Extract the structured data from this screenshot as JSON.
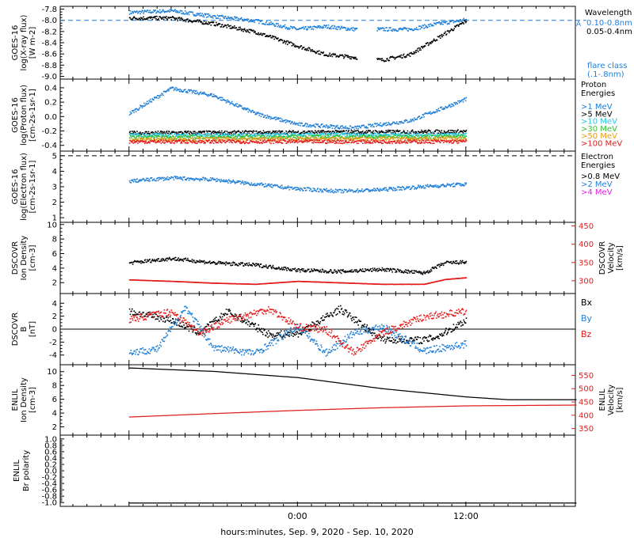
{
  "colors": {
    "black": "#000000",
    "blue": "#1f7fd8",
    "cyan": "#29c6e6",
    "green": "#35c035",
    "orange": "#e39a1a",
    "red": "#e21b1b",
    "magenta": "#e020e0"
  },
  "xaxis": {
    "label": "hours:minutes, Sep.  9, 2020 - Sep. 10, 2020",
    "ticks": [
      "0:00",
      "12:00"
    ],
    "tick_hours": [
      0,
      12
    ]
  },
  "chart_data": [
    {
      "id": "xray",
      "type": "scatter",
      "ylabel": [
        "GOES-16",
        "log(X-ray flux)",
        "[W m-2]"
      ],
      "yticks": [
        "-7.8",
        "-8.0",
        "-8.2",
        "-8.4",
        "-8.6",
        "-8.8",
        "-9.0"
      ],
      "ylim": [
        -9.05,
        -7.75
      ],
      "legend_title": "Wavelength",
      "legend": [
        "0.10-0.8nm",
        "0.05-0.4nm"
      ],
      "annotation": [
        "flare class",
        "(.1-.8nm)"
      ],
      "annotation_marker": "A",
      "reference_line": -8.0,
      "series": [
        {
          "name": "0.10-0.8nm",
          "color": "blue",
          "points": [
            [
              -12,
              -7.85
            ],
            [
              -9,
              -7.82
            ],
            [
              -6,
              -7.92
            ],
            [
              -3,
              -8.0
            ],
            [
              0,
              -8.15
            ],
            [
              2,
              -8.1
            ],
            [
              4,
              -8.15
            ],
            [
              6,
              -8.15
            ],
            [
              8,
              -8.15
            ],
            [
              10,
              -8.05
            ],
            [
              12,
              -7.98
            ]
          ]
        },
        {
          "name": "0.05-0.4nm",
          "color": "black",
          "points": [
            [
              -12,
              -7.95
            ],
            [
              -9,
              -7.95
            ],
            [
              -6,
              -8.05
            ],
            [
              -3,
              -8.2
            ],
            [
              0,
              -8.45
            ],
            [
              2,
              -8.6
            ],
            [
              4,
              -8.65
            ],
            [
              6,
              -8.7
            ],
            [
              8,
              -8.6
            ],
            [
              10,
              -8.3
            ],
            [
              12,
              -8.0
            ]
          ]
        }
      ]
    },
    {
      "id": "proton",
      "type": "scatter",
      "ylabel": [
        "GOES-16",
        "log(Proton flux)",
        "[cm-2s-1sr-1]"
      ],
      "yticks": [
        "0.4",
        "0.2",
        "0.0",
        "-0.2",
        "-0.4"
      ],
      "ylim": [
        -0.48,
        0.52
      ],
      "legend_title": [
        "Proton",
        "Energies"
      ],
      "legend": [
        ">1 MeV",
        ">5 MeV",
        ">10 MeV",
        ">30 MeV",
        ">50 MeV",
        ">100 MeV"
      ],
      "series": [
        {
          "name": ">1 MeV",
          "color": "blue",
          "points": [
            [
              -12,
              0.05
            ],
            [
              -9,
              0.4
            ],
            [
              -6,
              0.3
            ],
            [
              -3,
              0.05
            ],
            [
              0,
              -0.1
            ],
            [
              4,
              -0.15
            ],
            [
              8,
              -0.05
            ],
            [
              12,
              0.25
            ]
          ]
        },
        {
          "name": ">5 MeV",
          "color": "black",
          "points": [
            [
              -12,
              -0.22
            ],
            [
              12,
              -0.2
            ]
          ]
        },
        {
          "name": ">10 MeV",
          "color": "cyan",
          "points": [
            [
              -12,
              -0.25
            ],
            [
              12,
              -0.24
            ]
          ]
        },
        {
          "name": ">30 MeV",
          "color": "green",
          "points": [
            [
              -12,
              -0.28
            ],
            [
              12,
              -0.27
            ]
          ]
        },
        {
          "name": ">50 MeV",
          "color": "orange",
          "points": [
            [
              -12,
              -0.31
            ],
            [
              12,
              -0.3
            ]
          ]
        },
        {
          "name": ">100 MeV",
          "color": "red",
          "points": [
            [
              -12,
              -0.34
            ],
            [
              12,
              -0.34
            ]
          ]
        }
      ]
    },
    {
      "id": "electron",
      "type": "scatter",
      "ylabel": [
        "GOES-16",
        "log(Electron flux)",
        "[cm-2s-1sr-1]"
      ],
      "yticks": [
        "5",
        "4",
        "3",
        "2",
        "1"
      ],
      "ylim": [
        0.7,
        5.3
      ],
      "legend_title": [
        "Electron",
        "Energies"
      ],
      "legend": [
        ">0.8 MeV",
        ">2 MeV",
        ">4 MeV"
      ],
      "reference_line": 5.0,
      "series": [
        {
          "name": ">2 MeV",
          "color": "blue",
          "points": [
            [
              -12,
              3.4
            ],
            [
              -9,
              3.6
            ],
            [
              -6,
              3.5
            ],
            [
              -3,
              3.2
            ],
            [
              0,
              2.9
            ],
            [
              3,
              2.75
            ],
            [
              6,
              2.85
            ],
            [
              9,
              3.05
            ],
            [
              12,
              3.2
            ]
          ]
        }
      ]
    },
    {
      "id": "density",
      "type": "scatter",
      "ylabel": [
        "DSCOVR",
        "Ion Density",
        "[cm-3]"
      ],
      "yticks": [
        "10",
        "8",
        "6",
        "4",
        "2"
      ],
      "ylim": [
        0.5,
        10.3
      ],
      "y2label": [
        "DSCOVR",
        "Velocity",
        "[km/s]"
      ],
      "y2ticks": [
        "450",
        "400",
        "350",
        "300"
      ],
      "y2lim": [
        265,
        460
      ],
      "series": [
        {
          "name": "Density",
          "color": "black",
          "axis": "y",
          "points": [
            [
              -12,
              4.8
            ],
            [
              -9,
              5.4
            ],
            [
              -6,
              4.8
            ],
            [
              -3,
              4.5
            ],
            [
              0,
              3.8
            ],
            [
              3,
              3.6
            ],
            [
              6,
              3.9
            ],
            [
              9,
              3.4
            ],
            [
              10.5,
              4.8
            ],
            [
              12,
              4.9
            ]
          ]
        },
        {
          "name": "Velocity",
          "color": "red",
          "axis": "y2",
          "points": [
            [
              -12,
              304
            ],
            [
              -9,
              300
            ],
            [
              -6,
              295
            ],
            [
              -3,
              292
            ],
            [
              0,
              300
            ],
            [
              3,
              296
            ],
            [
              6,
              292
            ],
            [
              9,
              292
            ],
            [
              10.5,
              305
            ],
            [
              12,
              310
            ]
          ]
        }
      ]
    },
    {
      "id": "bfield",
      "type": "scatter",
      "ylabel": [
        "DSCOVR",
        "B",
        "[nT]"
      ],
      "yticks": [
        "4",
        "2",
        "0",
        "-2",
        "-4"
      ],
      "ylim": [
        -5.5,
        5.5
      ],
      "legend": [
        "Bx",
        "By",
        "Bz"
      ],
      "series": [
        {
          "name": "Bx",
          "color": "black",
          "points": [
            [
              -12,
              2.8
            ],
            [
              -9,
              1.5
            ],
            [
              -7,
              -0.5
            ],
            [
              -5,
              2.8
            ],
            [
              -2,
              -0.8
            ],
            [
              0,
              -0.6
            ],
            [
              3,
              3.2
            ],
            [
              6,
              -1.5
            ],
            [
              9,
              -1.6
            ],
            [
              10,
              -1
            ],
            [
              12,
              1.5
            ]
          ]
        },
        {
          "name": "By",
          "color": "blue",
          "points": [
            [
              -12,
              -3.5
            ],
            [
              -10,
              -3
            ],
            [
              -8,
              3.5
            ],
            [
              -6,
              -2.8
            ],
            [
              -3,
              -3.6
            ],
            [
              0,
              0.5
            ],
            [
              2,
              -3.6
            ],
            [
              4,
              -0.5
            ],
            [
              6,
              0.5
            ],
            [
              9,
              -3.3
            ],
            [
              12,
              -2.2
            ]
          ]
        },
        {
          "name": "Bz",
          "color": "red",
          "points": [
            [
              -12,
              1.6
            ],
            [
              -9,
              2.8
            ],
            [
              -7,
              -0.5
            ],
            [
              -5,
              1.5
            ],
            [
              -2,
              3.2
            ],
            [
              0,
              0.4
            ],
            [
              2,
              0
            ],
            [
              4,
              -3.6
            ],
            [
              6,
              -0.5
            ],
            [
              9,
              2.0
            ],
            [
              12,
              2.8
            ]
          ]
        }
      ]
    },
    {
      "id": "enlil-density",
      "type": "scatter",
      "ylabel": [
        "ENLIL",
        "Ion Density",
        "[cm-3]"
      ],
      "yticks": [
        "10",
        "8",
        "6",
        "4",
        "2"
      ],
      "ylim": [
        0.8,
        11.0
      ],
      "y2label": [
        "ENLIL",
        "Velocity",
        "[km/s]"
      ],
      "y2ticks": [
        "550",
        "500",
        "450",
        "400",
        "350"
      ],
      "y2lim": [
        325,
        590
      ],
      "series": [
        {
          "name": "Density",
          "color": "black",
          "axis": "y",
          "points": [
            [
              -12,
              10.6
            ],
            [
              -6,
              10.1
            ],
            [
              0,
              9.2
            ],
            [
              6,
              7.6
            ],
            [
              12,
              6.4
            ],
            [
              15,
              6.0
            ],
            [
              20,
              6.0
            ]
          ]
        },
        {
          "name": "Velocity",
          "color": "red",
          "axis": "y2",
          "points": [
            [
              -12,
              395
            ],
            [
              -6,
              408
            ],
            [
              0,
              420
            ],
            [
              6,
              430
            ],
            [
              12,
              437
            ],
            [
              20,
              440
            ]
          ]
        }
      ]
    },
    {
      "id": "enlil-polarity",
      "type": "scatter",
      "ylabel": [
        "ENLIL",
        "Br polarity"
      ],
      "yticks": [
        "1.0",
        "0.8",
        "0.6",
        "0.4",
        "0.2",
        "0.0",
        "-0.2",
        "-0.4",
        "-0.6",
        "-0.8",
        "-1.0"
      ],
      "ylim": [
        -1.12,
        1.12
      ],
      "series": [
        {
          "name": "Br polarity",
          "color": "black",
          "points": [
            [
              -12,
              -1.0
            ],
            [
              20,
              -1.0
            ]
          ]
        }
      ]
    }
  ]
}
